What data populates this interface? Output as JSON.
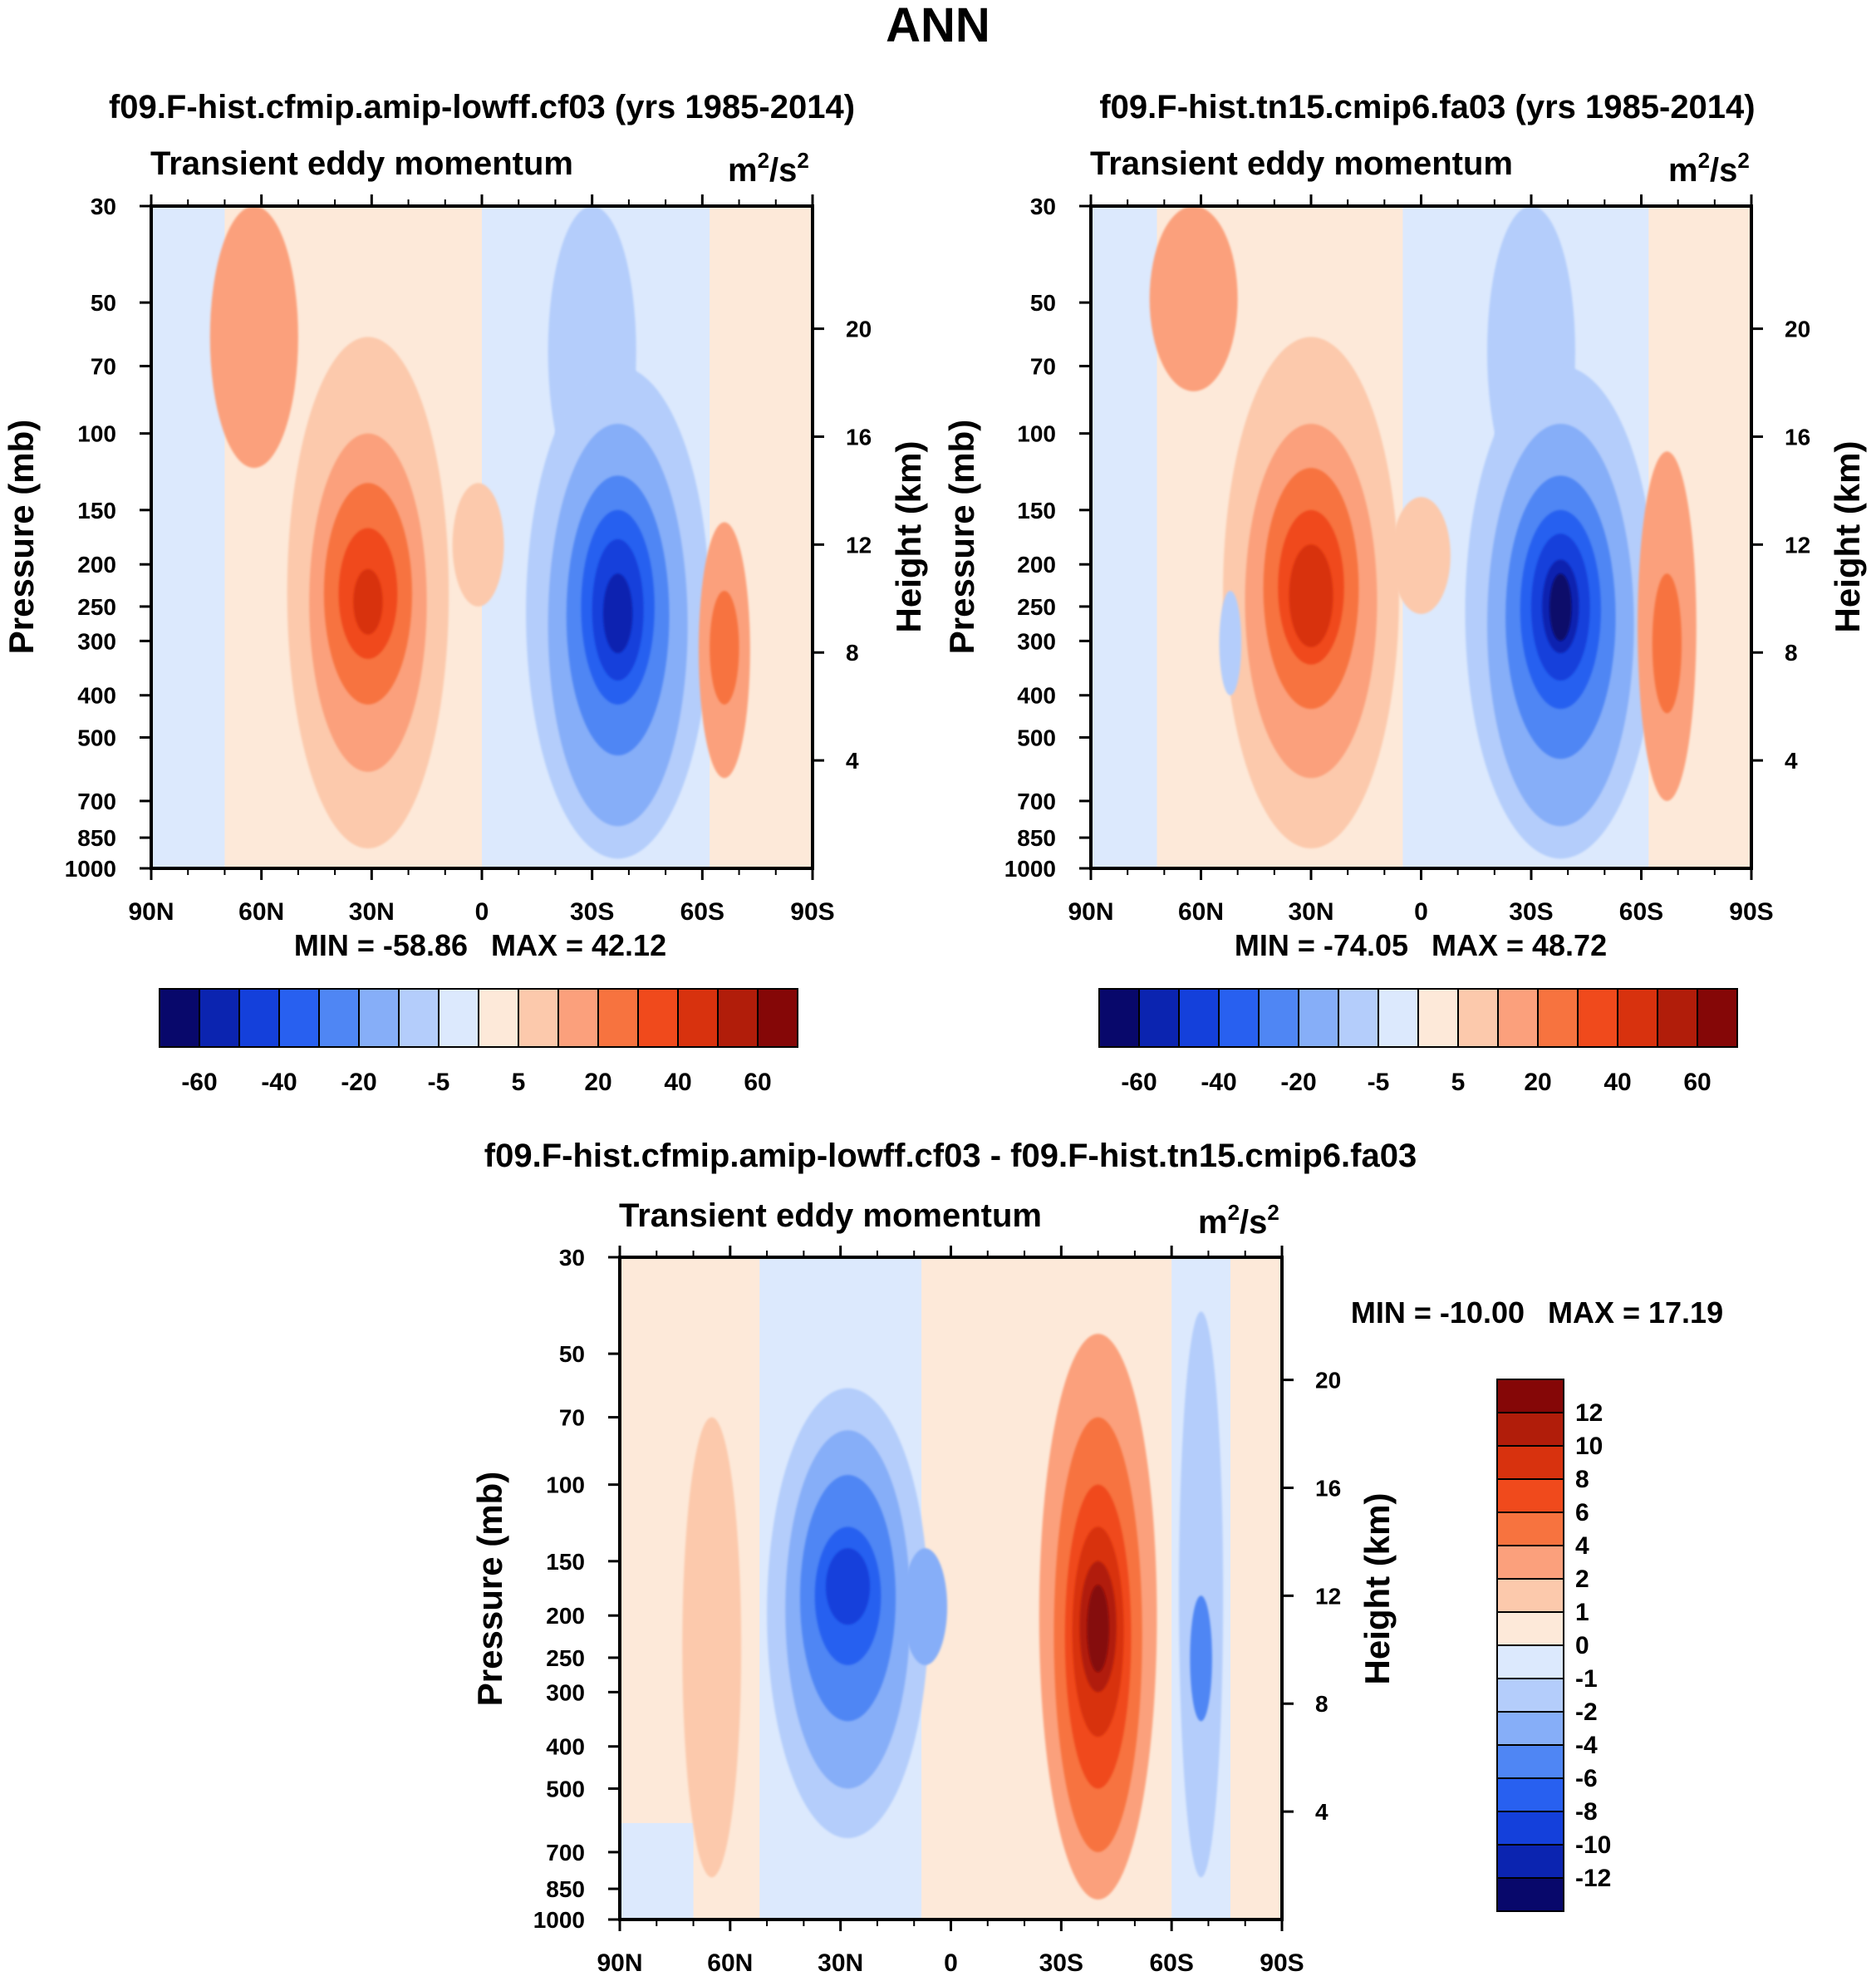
{
  "figure_title": "ANN",
  "unit_base": "m",
  "unit_exp1": "2",
  "unit_sep": "/s",
  "unit_exp2": "2",
  "colors": {
    "abs_levels": [
      "#08086b",
      "#0b24b0",
      "#1440db",
      "#2860f0",
      "#4f86f4",
      "#86aef8",
      "#b4cdfb",
      "#dce9fd",
      "#fde9d9",
      "#fcc9ac",
      "#fba07c",
      "#f7733f",
      "#f04a1c",
      "#d8320e",
      "#b11d0a",
      "#850707"
    ],
    "diff_levels": [
      "#08086b",
      "#0b24b0",
      "#1440db",
      "#2860f0",
      "#4f86f4",
      "#86aef8",
      "#b4cdfb",
      "#dce9fd",
      "#fde9d9",
      "#fcc9ac",
      "#fba07c",
      "#f7733f",
      "#f04a1c",
      "#d8320e",
      "#b11d0a",
      "#850707"
    ]
  },
  "chart_data": [
    {
      "type": "heatmap",
      "title": "f09.F-hist.cfmip.amip-lowff.cf03 (yrs 1985-2014)",
      "variable_label": "Transient eddy momentum",
      "xlabel": "",
      "ylabel": "Pressure (mb)",
      "y2label": "Height (km)",
      "x_ticks": [
        "90N",
        "60N",
        "30N",
        "0",
        "30S",
        "60S",
        "90S"
      ],
      "x_range_deg": [
        90,
        -90
      ],
      "y_ticks": [
        "30",
        "50",
        "70",
        "100",
        "150",
        "200",
        "250",
        "300",
        "400",
        "500",
        "700",
        "850",
        "1000"
      ],
      "y_range_mb": [
        30,
        1000
      ],
      "y2_ticks": [
        "20",
        "16",
        "12",
        "8",
        "4"
      ],
      "min_label": "MIN = -58.86",
      "max_label": "MAX =  42.12",
      "features": [
        {
          "lat": 31,
          "p": 250,
          "value": 42.12
        },
        {
          "lat": -37,
          "p": 260,
          "value": -58.86
        },
        {
          "lat": -66,
          "p": 300,
          "value": 22
        },
        {
          "lat": 1,
          "p": 180,
          "value": 7
        }
      ],
      "colorbar_labels": [
        "-60",
        "-40",
        "-20",
        "-5",
        "5",
        "20",
        "40",
        "60"
      ]
    },
    {
      "type": "heatmap",
      "title": "f09.F-hist.tn15.cmip6.fa03 (yrs 1985-2014)",
      "variable_label": "Transient eddy momentum",
      "xlabel": "",
      "ylabel": "Pressure (mb)",
      "y2label": "Height (km)",
      "x_ticks": [
        "90N",
        "60N",
        "30N",
        "0",
        "30S",
        "60S",
        "90S"
      ],
      "x_range_deg": [
        90,
        -90
      ],
      "y_ticks": [
        "30",
        "50",
        "70",
        "100",
        "150",
        "200",
        "250",
        "300",
        "400",
        "500",
        "700",
        "850",
        "1000"
      ],
      "y_range_mb": [
        30,
        1000
      ],
      "y2_ticks": [
        "20",
        "16",
        "12",
        "8",
        "4"
      ],
      "min_label": "MIN = -74.05",
      "max_label": "MAX =  48.72",
      "features": [
        {
          "lat": 30,
          "p": 230,
          "value": 48.72
        },
        {
          "lat": -38,
          "p": 250,
          "value": -74.05
        },
        {
          "lat": -67,
          "p": 300,
          "value": 26
        },
        {
          "lat": 0,
          "p": 190,
          "value": 9
        }
      ],
      "colorbar_labels": [
        "-60",
        "-40",
        "-20",
        "-5",
        "5",
        "20",
        "40",
        "60"
      ]
    },
    {
      "type": "heatmap",
      "title": "f09.F-hist.cfmip.amip-lowff.cf03 - f09.F-hist.tn15.cmip6.fa03",
      "variable_label": "Transient eddy momentum",
      "xlabel": "",
      "ylabel": "Pressure (mb)",
      "y2label": "Height (km)",
      "x_ticks": [
        "90N",
        "60N",
        "30N",
        "0",
        "30S",
        "60S",
        "90S"
      ],
      "x_range_deg": [
        90,
        -90
      ],
      "y_ticks": [
        "30",
        "50",
        "70",
        "100",
        "150",
        "200",
        "250",
        "300",
        "400",
        "500",
        "700",
        "850",
        "1000"
      ],
      "y_range_mb": [
        30,
        1000
      ],
      "y2_ticks": [
        "20",
        "16",
        "12",
        "8",
        "4"
      ],
      "min_label": "MIN = -10.00",
      "max_label": "MAX =  17.19",
      "features": [
        {
          "lat": 28,
          "p": 170,
          "value": -10.0
        },
        {
          "lat": -40,
          "p": 220,
          "value": 17.19
        },
        {
          "lat": -68,
          "p": 250,
          "value": -6
        },
        {
          "lat": 65,
          "p": 250,
          "value": 2
        }
      ],
      "colorbar_labels": [
        "12",
        "10",
        "8",
        "6",
        "4",
        "2",
        "1",
        "0",
        "-1",
        "-2",
        "-4",
        "-6",
        "-8",
        "-10",
        "-12"
      ]
    }
  ]
}
